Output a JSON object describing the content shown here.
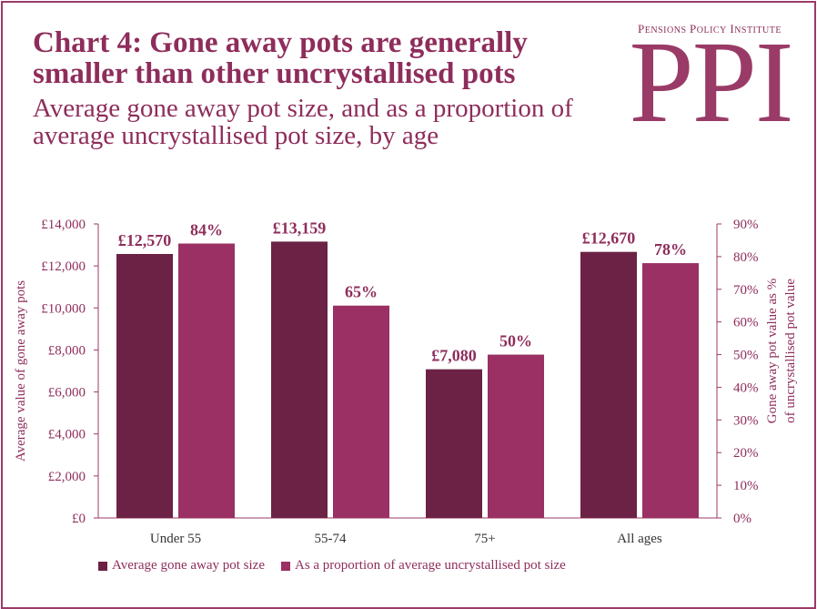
{
  "header": {
    "title": "Chart 4: Gone away pots are generally smaller than other uncrystallised pots",
    "subtitle": "Average gone away pot size, and as a proportion of average uncrystallised pot size, by age"
  },
  "logo": {
    "institute_name": "Pensions Policy Institute",
    "mark": "PPI"
  },
  "colors": {
    "border": "#9a3b67",
    "text": "#8e2d5b",
    "series_value": "#6b2245",
    "series_percent": "#9a3063"
  },
  "chart_data": {
    "type": "bar",
    "categories": [
      "Under 55",
      "55-74",
      "75+",
      "All ages"
    ],
    "series": [
      {
        "name": "Average gone away pot size",
        "axis": "left",
        "values": [
          12570,
          13159,
          7080,
          12670
        ],
        "labels": [
          "£12,570",
          "£13,159",
          "£7,080",
          "£12,670"
        ]
      },
      {
        "name": "As a proportion of average uncrystallised pot size",
        "axis": "right",
        "values": [
          84,
          65,
          50,
          78
        ],
        "labels": [
          "84%",
          "65%",
          "50%",
          "78%"
        ]
      }
    ],
    "ylabel_left": "Average value of gone away pots",
    "ylabel_right": [
      "Gone away pot value as %",
      "of uncrystallised pot value"
    ],
    "ylim_left": [
      0,
      14000
    ],
    "ylim_right": [
      0,
      90
    ],
    "yticks_left": [
      "£0",
      "£2,000",
      "£4,000",
      "£6,000",
      "£8,000",
      "£10,000",
      "£12,000",
      "£14,000"
    ],
    "yticks_right": [
      "0%",
      "10%",
      "20%",
      "30%",
      "40%",
      "50%",
      "60%",
      "70%",
      "80%",
      "90%"
    ],
    "grid": false,
    "legend_position": "bottom"
  }
}
